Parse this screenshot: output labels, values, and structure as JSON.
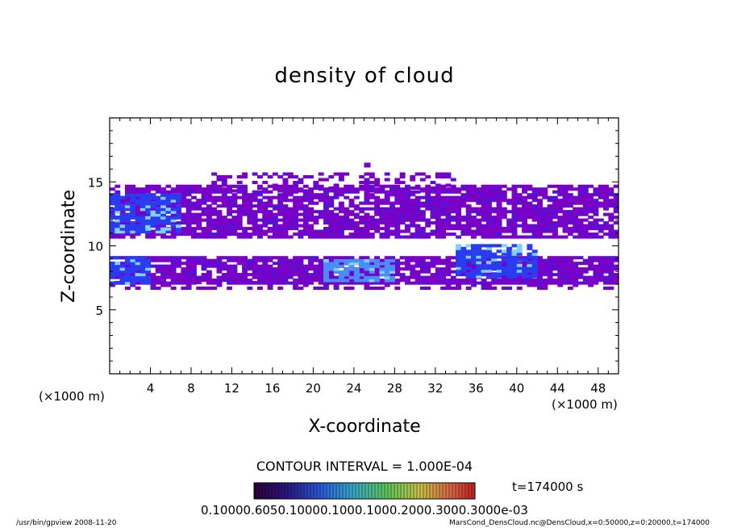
{
  "chart_data": {
    "type": "heatmap",
    "title": "density of cloud",
    "xlabel": "X-coordinate",
    "ylabel": "Z-coordinate",
    "x_unit_left": "(×1000 m)",
    "x_unit_right": "(×1000 m)",
    "xlim": [
      0,
      50
    ],
    "ylim": [
      0,
      20
    ],
    "x_ticks": [
      4,
      8,
      12,
      16,
      20,
      24,
      28,
      32,
      36,
      40,
      44,
      48
    ],
    "y_ticks": [
      5,
      10,
      15
    ],
    "contour_interval": "CONTOUR INTERVAL = 1.000E-04",
    "time_label": "t=174000 s",
    "colorbar_labels": "0.10000.6050.10000.1000.1000.2000.3000.3000e-03",
    "colors": {
      "purple": "#7a00c8",
      "violet": "#5a10d0",
      "blue": "#2a3cf0",
      "light_blue": "#4a8cf8",
      "cyan": "#80d0ff"
    },
    "regions": [
      {
        "name": "upper-cloud-layer",
        "z_range": [
          10.5,
          14.5
        ],
        "x_range": [
          0,
          50
        ],
        "level": "purple"
      },
      {
        "name": "upper-cloud-core-left",
        "z_range": [
          11,
          14
        ],
        "x_range": [
          0,
          7
        ],
        "level": "blue"
      },
      {
        "name": "lower-cloud-layer",
        "z_range": [
          7,
          9
        ],
        "x_range": [
          0,
          50
        ],
        "level": "purple"
      },
      {
        "name": "lower-core-center",
        "z_range": [
          7.2,
          8.8
        ],
        "x_range": [
          21,
          28
        ],
        "level": "light_blue"
      },
      {
        "name": "lower-core-right",
        "z_range": [
          7.5,
          10
        ],
        "x_range": [
          34,
          42
        ],
        "level": "blue"
      },
      {
        "name": "lower-core-left",
        "z_range": [
          7,
          9
        ],
        "x_range": [
          0,
          4
        ],
        "level": "blue"
      }
    ]
  },
  "footer": {
    "left": "/usr/bin/gpview  2008-11-20",
    "right": "MarsCond_DensCloud.nc@DensCloud,x=0:50000,z=0:20000,t=174000"
  }
}
